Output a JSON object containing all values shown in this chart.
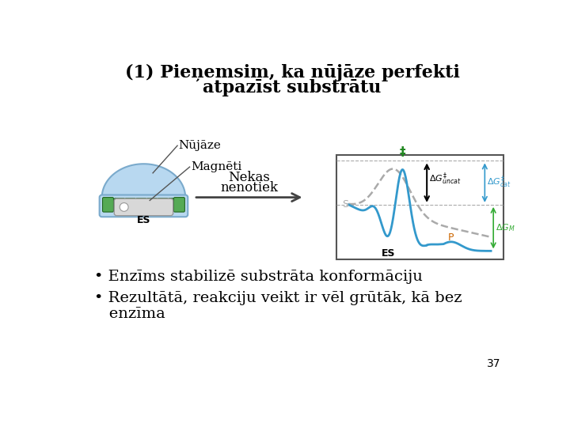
{
  "title_line1": "(1) Pieņemsim, ka nūjāze perfekti",
  "title_line2": "atpazīst substrātu",
  "label_nujaze": "Nūjāze",
  "label_magneti": "Magnēti",
  "label_nekas_line1": "Nekas",
  "label_nekas_line2": "nenotiek",
  "label_ES_bottom": "ES",
  "bullet1": "• Enzīms stabilizē substrāta konformāciju",
  "bullet2": "• Rezultātā, reakciju veikt ir vēl grūtāk, kā bez",
  "bullet2b": "   enzīma",
  "page_num": "37",
  "bg_color": "#ffffff",
  "title_color": "#000000",
  "text_color": "#000000",
  "enzyme_body_color": "#b8d8f0",
  "enzyme_outline_color": "#7aaacc",
  "magnet_color": "#55aa55",
  "magnet_border_color": "#226622",
  "substrate_color": "#d8d8d8",
  "substrate_outline": "#999999",
  "arrow_color": "#444444",
  "graph_bg": "#ffffff",
  "graph_border": "#555555",
  "uncatalyzed_color": "#aaaaaa",
  "catalyzed_color": "#3399cc",
  "label_S_color": "#aaaaaa",
  "label_P_color": "#cc6600",
  "label_ES_color": "#000000",
  "dG_uncat_color": "#000000",
  "dG_cat_color": "#3399cc",
  "dG_M_color": "#33aa33",
  "transition_label_color": "#228822"
}
